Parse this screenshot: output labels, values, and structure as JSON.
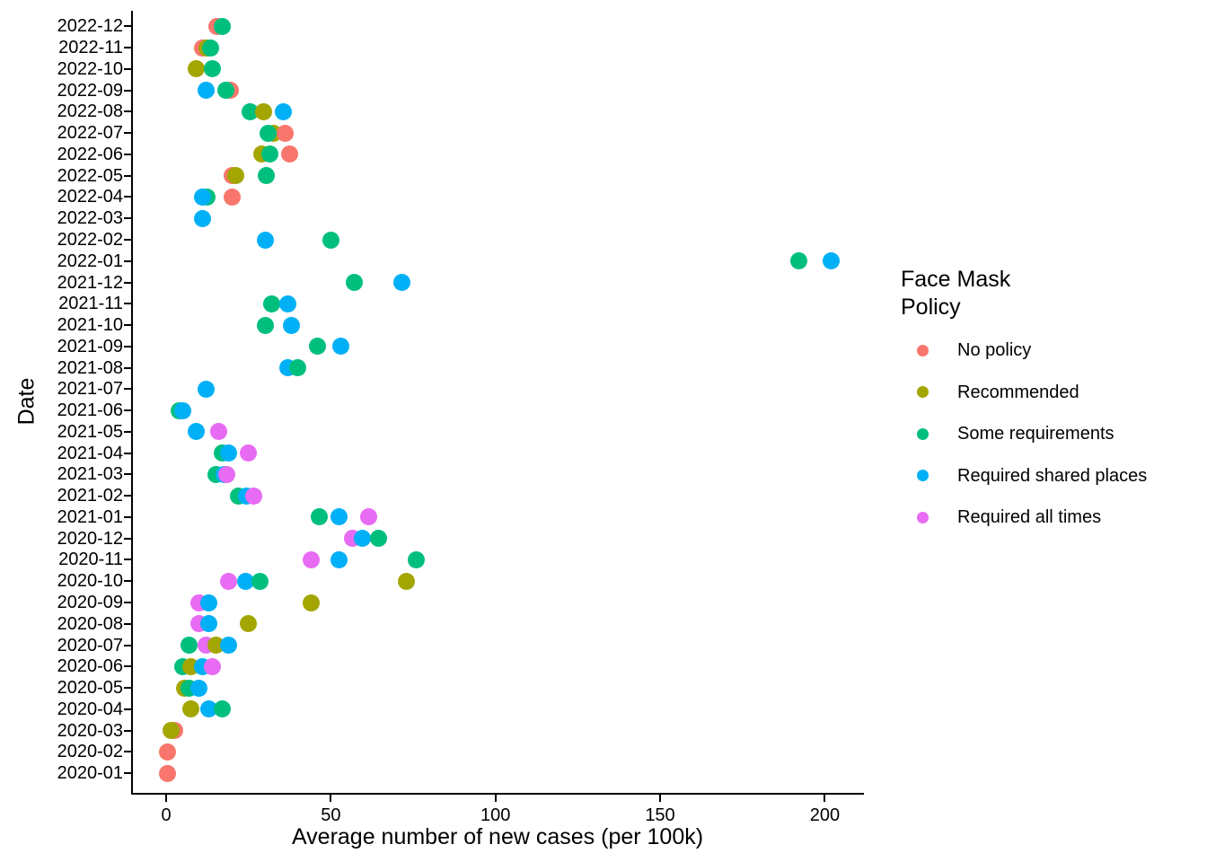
{
  "chart_data": {
    "type": "scatter",
    "subtype": "horizontal-dot-plot",
    "title": "",
    "xlabel": "Average number of new cases (per 100k)",
    "ylabel": "Date",
    "x_ticks": [
      0,
      50,
      100,
      150,
      200
    ],
    "xlim": [
      -2,
      212
    ],
    "grid": "off",
    "legend": {
      "position": "right",
      "title_lines": [
        "Face Mask",
        "Policy"
      ],
      "entries": [
        {
          "label": "No policy",
          "color": "#F8766D"
        },
        {
          "label": "Recommended",
          "color": "#A3A500"
        },
        {
          "label": "Some requirements",
          "color": "#00BF7D"
        },
        {
          "label": "Required shared places",
          "color": "#00B0F6"
        },
        {
          "label": "Required all times",
          "color": "#E76BF3"
        }
      ]
    },
    "rows_note": "rows ordered top to bottom on the y axis; points listed in draw order (later points drawn on top); value = average new cases per 100k",
    "rows": [
      {
        "date": "2022-12",
        "points": [
          {
            "policy": "No policy",
            "value": 15.5
          },
          {
            "policy": "Some requirements",
            "value": 17
          }
        ]
      },
      {
        "date": "2022-11",
        "points": [
          {
            "policy": "No policy",
            "value": 11
          },
          {
            "policy": "Recommended",
            "value": 12.5
          },
          {
            "policy": "Some requirements",
            "value": 13.5
          }
        ]
      },
      {
        "date": "2022-10",
        "points": [
          {
            "policy": "Recommended",
            "value": 9
          },
          {
            "policy": "Some requirements",
            "value": 14
          }
        ]
      },
      {
        "date": "2022-09",
        "points": [
          {
            "policy": "Required shared places",
            "value": 12
          },
          {
            "policy": "No policy",
            "value": 19.5
          },
          {
            "policy": "Some requirements",
            "value": 18
          }
        ]
      },
      {
        "date": "2022-08",
        "points": [
          {
            "policy": "Some requirements",
            "value": 25.5
          },
          {
            "policy": "Recommended",
            "value": 29.5
          },
          {
            "policy": "Required shared places",
            "value": 35.5
          }
        ]
      },
      {
        "date": "2022-07",
        "points": [
          {
            "policy": "Recommended",
            "value": 32.5
          },
          {
            "policy": "Some requirements",
            "value": 31
          },
          {
            "policy": "No policy",
            "value": 36
          }
        ]
      },
      {
        "date": "2022-06",
        "points": [
          {
            "policy": "Recommended",
            "value": 29
          },
          {
            "policy": "Some requirements",
            "value": 31.5
          },
          {
            "policy": "No policy",
            "value": 37.5
          }
        ]
      },
      {
        "date": "2022-05",
        "points": [
          {
            "policy": "No policy",
            "value": 20
          },
          {
            "policy": "Recommended",
            "value": 21
          },
          {
            "policy": "Some requirements",
            "value": 30.5
          }
        ]
      },
      {
        "date": "2022-04",
        "points": [
          {
            "policy": "Some requirements",
            "value": 12.5
          },
          {
            "policy": "Required shared places",
            "value": 11
          },
          {
            "policy": "No policy",
            "value": 20
          }
        ]
      },
      {
        "date": "2022-03",
        "points": [
          {
            "policy": "Required shared places",
            "value": 11
          }
        ]
      },
      {
        "date": "2022-02",
        "points": [
          {
            "policy": "Required shared places",
            "value": 30
          },
          {
            "policy": "Some requirements",
            "value": 50
          }
        ]
      },
      {
        "date": "2022-01",
        "points": [
          {
            "policy": "Some requirements",
            "value": 192
          },
          {
            "policy": "Required shared places",
            "value": 202
          }
        ]
      },
      {
        "date": "2021-12",
        "points": [
          {
            "policy": "Some requirements",
            "value": 57
          },
          {
            "policy": "Required shared places",
            "value": 71.5
          }
        ]
      },
      {
        "date": "2021-11",
        "points": [
          {
            "policy": "Some requirements",
            "value": 32
          },
          {
            "policy": "Required shared places",
            "value": 37
          }
        ]
      },
      {
        "date": "2021-10",
        "points": [
          {
            "policy": "Some requirements",
            "value": 30
          },
          {
            "policy": "Required shared places",
            "value": 38
          }
        ]
      },
      {
        "date": "2021-09",
        "points": [
          {
            "policy": "Some requirements",
            "value": 46
          },
          {
            "policy": "Required shared places",
            "value": 53
          }
        ]
      },
      {
        "date": "2021-08",
        "points": [
          {
            "policy": "Required shared places",
            "value": 37
          },
          {
            "policy": "Some requirements",
            "value": 40
          }
        ]
      },
      {
        "date": "2021-07",
        "points": [
          {
            "policy": "Required shared places",
            "value": 12
          }
        ]
      },
      {
        "date": "2021-06",
        "points": [
          {
            "policy": "Some requirements",
            "value": 4
          },
          {
            "policy": "Required shared places",
            "value": 5
          }
        ]
      },
      {
        "date": "2021-05",
        "points": [
          {
            "policy": "Required shared places",
            "value": 9
          },
          {
            "policy": "Required all times",
            "value": 16
          }
        ]
      },
      {
        "date": "2021-04",
        "points": [
          {
            "policy": "Some requirements",
            "value": 17
          },
          {
            "policy": "Required shared places",
            "value": 19
          },
          {
            "policy": "Required all times",
            "value": 25
          }
        ]
      },
      {
        "date": "2021-03",
        "points": [
          {
            "policy": "Some requirements",
            "value": 15
          },
          {
            "policy": "Required shared places",
            "value": 17.5
          },
          {
            "policy": "Required all times",
            "value": 18.5
          }
        ]
      },
      {
        "date": "2021-02",
        "points": [
          {
            "policy": "Some requirements",
            "value": 22
          },
          {
            "policy": "Required shared places",
            "value": 24.5
          },
          {
            "policy": "Required all times",
            "value": 26.5
          }
        ]
      },
      {
        "date": "2021-01",
        "points": [
          {
            "policy": "Some requirements",
            "value": 46.5
          },
          {
            "policy": "Required shared places",
            "value": 52.5
          },
          {
            "policy": "Required all times",
            "value": 61.5
          }
        ]
      },
      {
        "date": "2020-12",
        "points": [
          {
            "policy": "Required all times",
            "value": 56.5
          },
          {
            "policy": "Required shared places",
            "value": 59.5
          },
          {
            "policy": "Some requirements",
            "value": 64.5
          }
        ]
      },
      {
        "date": "2020-11",
        "points": [
          {
            "policy": "Required all times",
            "value": 44
          },
          {
            "policy": "Required shared places",
            "value": 52.5
          },
          {
            "policy": "Some requirements",
            "value": 76
          }
        ]
      },
      {
        "date": "2020-10",
        "points": [
          {
            "policy": "Required all times",
            "value": 19
          },
          {
            "policy": "Required shared places",
            "value": 24
          },
          {
            "policy": "Some requirements",
            "value": 28.5
          },
          {
            "policy": "Recommended",
            "value": 73
          }
        ]
      },
      {
        "date": "2020-09",
        "points": [
          {
            "policy": "Required all times",
            "value": 10
          },
          {
            "policy": "Required shared places",
            "value": 13
          },
          {
            "policy": "Recommended",
            "value": 44
          }
        ]
      },
      {
        "date": "2020-08",
        "points": [
          {
            "policy": "Required all times",
            "value": 10
          },
          {
            "policy": "Required shared places",
            "value": 13
          },
          {
            "policy": "Recommended",
            "value": 25
          }
        ]
      },
      {
        "date": "2020-07",
        "points": [
          {
            "policy": "Some requirements",
            "value": 7
          },
          {
            "policy": "Required all times",
            "value": 12
          },
          {
            "policy": "Recommended",
            "value": 15
          },
          {
            "policy": "Required shared places",
            "value": 19
          }
        ]
      },
      {
        "date": "2020-06",
        "points": [
          {
            "policy": "Some requirements",
            "value": 5
          },
          {
            "policy": "Recommended",
            "value": 7.5
          },
          {
            "policy": "Required shared places",
            "value": 11
          },
          {
            "policy": "Required all times",
            "value": 14
          }
        ]
      },
      {
        "date": "2020-05",
        "points": [
          {
            "policy": "Recommended",
            "value": 5.5
          },
          {
            "policy": "Some requirements",
            "value": 7
          },
          {
            "policy": "Required shared places",
            "value": 10
          }
        ]
      },
      {
        "date": "2020-04",
        "points": [
          {
            "policy": "Recommended",
            "value": 7.5
          },
          {
            "policy": "Required shared places",
            "value": 13
          },
          {
            "policy": "Some requirements",
            "value": 17
          }
        ]
      },
      {
        "date": "2020-03",
        "points": [
          {
            "policy": "No policy",
            "value": 2.5
          },
          {
            "policy": "Recommended",
            "value": 1.5
          }
        ]
      },
      {
        "date": "2020-02",
        "points": [
          {
            "policy": "No policy",
            "value": 0.3
          }
        ]
      },
      {
        "date": "2020-01",
        "points": [
          {
            "policy": "No policy",
            "value": 0.3
          }
        ]
      }
    ]
  }
}
